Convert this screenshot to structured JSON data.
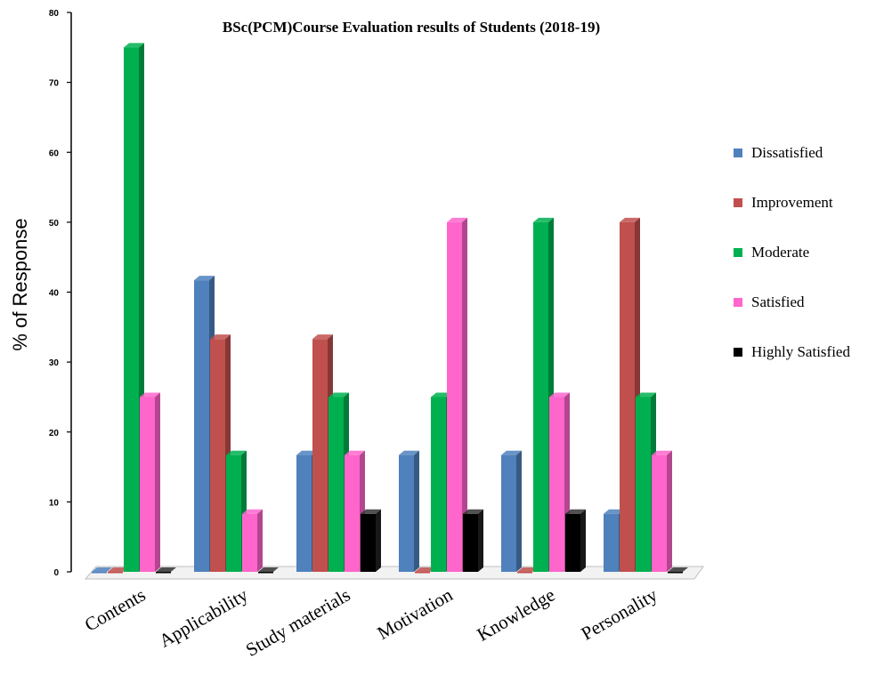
{
  "chart_data": {
    "type": "bar",
    "title": "BSc(PCM)Course Evaluation  results of Students (2018-19)",
    "ylabel": "% of Response",
    "xlabel": "",
    "ylim": [
      0,
      80
    ],
    "yticks": [
      0,
      10,
      20,
      30,
      40,
      50,
      60,
      70,
      80
    ],
    "tick_labels": [
      "0",
      "10",
      "20",
      "30",
      "40",
      "50",
      "60",
      "70",
      "80"
    ],
    "categories": [
      "Contents",
      "Applicability",
      "Study materials",
      "Motivation",
      "Knowledge",
      "Personality"
    ],
    "series": [
      {
        "name": "Dissatisfied",
        "color": "#4f81bd",
        "values": [
          0,
          41.7,
          16.7,
          16.7,
          16.7,
          8.3
        ]
      },
      {
        "name": "Improvement",
        "color": "#c0504d",
        "values": [
          0,
          33.3,
          33.3,
          0,
          0,
          50
        ]
      },
      {
        "name": " Moderate",
        "color": "#00b050",
        "values": [
          75,
          16.7,
          25,
          25,
          50,
          25
        ]
      },
      {
        "name": " Satisfied",
        "color": "#ff66cc",
        "values": [
          25,
          8.3,
          16.7,
          50,
          25,
          16.7
        ]
      },
      {
        "name": "Highly Satisfied",
        "color": "#000000",
        "values": [
          0,
          0,
          8.3,
          8.3,
          8.3,
          0
        ]
      }
    ],
    "grid": false,
    "legend_position": "right",
    "style": "3d-clustered-column"
  }
}
